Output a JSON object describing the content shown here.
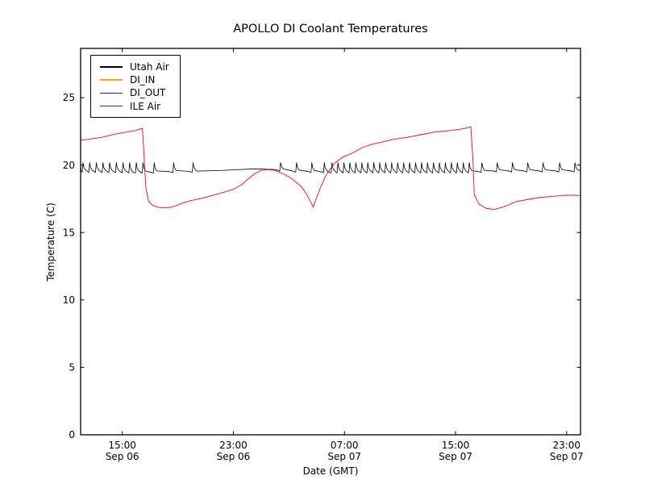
{
  "chart_data": {
    "type": "line",
    "title": "APOLLO DI Coolant Temperatures",
    "xlabel": "Date (GMT)",
    "ylabel": "Temperature (C)",
    "x_unit": "hours since Sep 06 00:00 GMT",
    "xlim": [
      12,
      48
    ],
    "ylim": [
      0,
      28.65
    ],
    "grid": false,
    "legend_position": "upper-left",
    "x_ticks": [
      {
        "hour": 15,
        "time": "15:00",
        "date": "Sep 06"
      },
      {
        "hour": 23,
        "time": "23:00",
        "date": "Sep 06"
      },
      {
        "hour": 31,
        "time": "07:00",
        "date": "Sep 07"
      },
      {
        "hour": 39,
        "time": "15:00",
        "date": "Sep 07"
      },
      {
        "hour": 47,
        "time": "23:00",
        "date": "Sep 07"
      }
    ],
    "y_ticks": [
      0,
      5,
      10,
      15,
      20,
      25
    ],
    "series": [
      {
        "name": "Utah Air",
        "color": "#000000",
        "width": 0.8,
        "style": "spike-train",
        "start": [
          12,
          19.95
        ],
        "spike_peak": 20.18,
        "baseline": [
          [
            12,
            19.55
          ],
          [
            17,
            19.48
          ],
          [
            20.4,
            19.55
          ],
          [
            22.5,
            19.62
          ],
          [
            24.5,
            19.72
          ],
          [
            25.8,
            19.68
          ],
          [
            27.5,
            19.55
          ],
          [
            30,
            19.5
          ],
          [
            40,
            19.5
          ],
          [
            41.5,
            19.57
          ],
          [
            48,
            19.57
          ]
        ],
        "spike_times": [
          12.17,
          12.65,
          13.13,
          13.61,
          14.09,
          14.57,
          15.05,
          15.53,
          16.01,
          16.49,
          17.3,
          18.7,
          20.1,
          26.4,
          27.55,
          28.65,
          29.55,
          30.1,
          30.53,
          30.96,
          31.39,
          31.82,
          32.25,
          32.68,
          33.11,
          33.54,
          33.97,
          34.4,
          34.83,
          35.26,
          35.69,
          36.12,
          36.55,
          36.98,
          37.41,
          37.84,
          38.27,
          38.7,
          39.13,
          39.56,
          39.99,
          40.9,
          42.0,
          43.1,
          44.2,
          45.3,
          46.5,
          47.6
        ]
      },
      {
        "name": "DI_IN",
        "color": "#ffa500",
        "width": 1.0,
        "style": "points",
        "points": [
          [
            12,
            0
          ],
          [
            48,
            0
          ]
        ]
      },
      {
        "name": "DI_OUT",
        "color": "#800080",
        "width": 1.0,
        "style": "points",
        "points": [
          [
            12,
            0
          ],
          [
            48,
            0
          ]
        ]
      },
      {
        "name": "ILE Air",
        "color": "#ff0000",
        "width": 0.9,
        "style": "points",
        "points": [
          [
            12,
            21.85
          ],
          [
            12.5,
            21.9
          ],
          [
            13.5,
            22.05
          ],
          [
            14.5,
            22.3
          ],
          [
            15.3,
            22.45
          ],
          [
            15.9,
            22.55
          ],
          [
            16.3,
            22.68
          ],
          [
            16.45,
            22.72
          ],
          [
            16.55,
            21.0
          ],
          [
            16.7,
            18.3
          ],
          [
            16.9,
            17.3
          ],
          [
            17.2,
            17.0
          ],
          [
            17.6,
            16.87
          ],
          [
            18.2,
            16.82
          ],
          [
            18.8,
            16.95
          ],
          [
            19.4,
            17.2
          ],
          [
            20.0,
            17.38
          ],
          [
            20.8,
            17.55
          ],
          [
            21.5,
            17.75
          ],
          [
            22.2,
            17.95
          ],
          [
            23.0,
            18.2
          ],
          [
            23.6,
            18.55
          ],
          [
            24.1,
            19.0
          ],
          [
            24.6,
            19.4
          ],
          [
            25.0,
            19.6
          ],
          [
            25.5,
            19.67
          ],
          [
            26.0,
            19.6
          ],
          [
            26.6,
            19.35
          ],
          [
            27.2,
            19.0
          ],
          [
            27.9,
            18.4
          ],
          [
            28.3,
            17.8
          ],
          [
            28.6,
            17.2
          ],
          [
            28.75,
            16.88
          ],
          [
            29.0,
            17.6
          ],
          [
            29.3,
            18.4
          ],
          [
            29.6,
            19.1
          ],
          [
            29.9,
            19.6
          ],
          [
            30.3,
            20.15
          ],
          [
            30.9,
            20.6
          ],
          [
            31.5,
            20.85
          ],
          [
            32.3,
            21.3
          ],
          [
            33.0,
            21.55
          ],
          [
            33.7,
            21.7
          ],
          [
            34.5,
            21.9
          ],
          [
            35.5,
            22.05
          ],
          [
            36.5,
            22.25
          ],
          [
            37.5,
            22.45
          ],
          [
            38.5,
            22.55
          ],
          [
            39.3,
            22.65
          ],
          [
            39.8,
            22.75
          ],
          [
            40.1,
            22.85
          ],
          [
            40.25,
            20.5
          ],
          [
            40.35,
            17.8
          ],
          [
            40.7,
            17.1
          ],
          [
            41.2,
            16.8
          ],
          [
            41.8,
            16.7
          ],
          [
            42.6,
            16.95
          ],
          [
            43.4,
            17.3
          ],
          [
            44.2,
            17.45
          ],
          [
            45.1,
            17.6
          ],
          [
            46.0,
            17.68
          ],
          [
            47.0,
            17.77
          ],
          [
            47.9,
            17.75
          ]
        ]
      }
    ]
  }
}
